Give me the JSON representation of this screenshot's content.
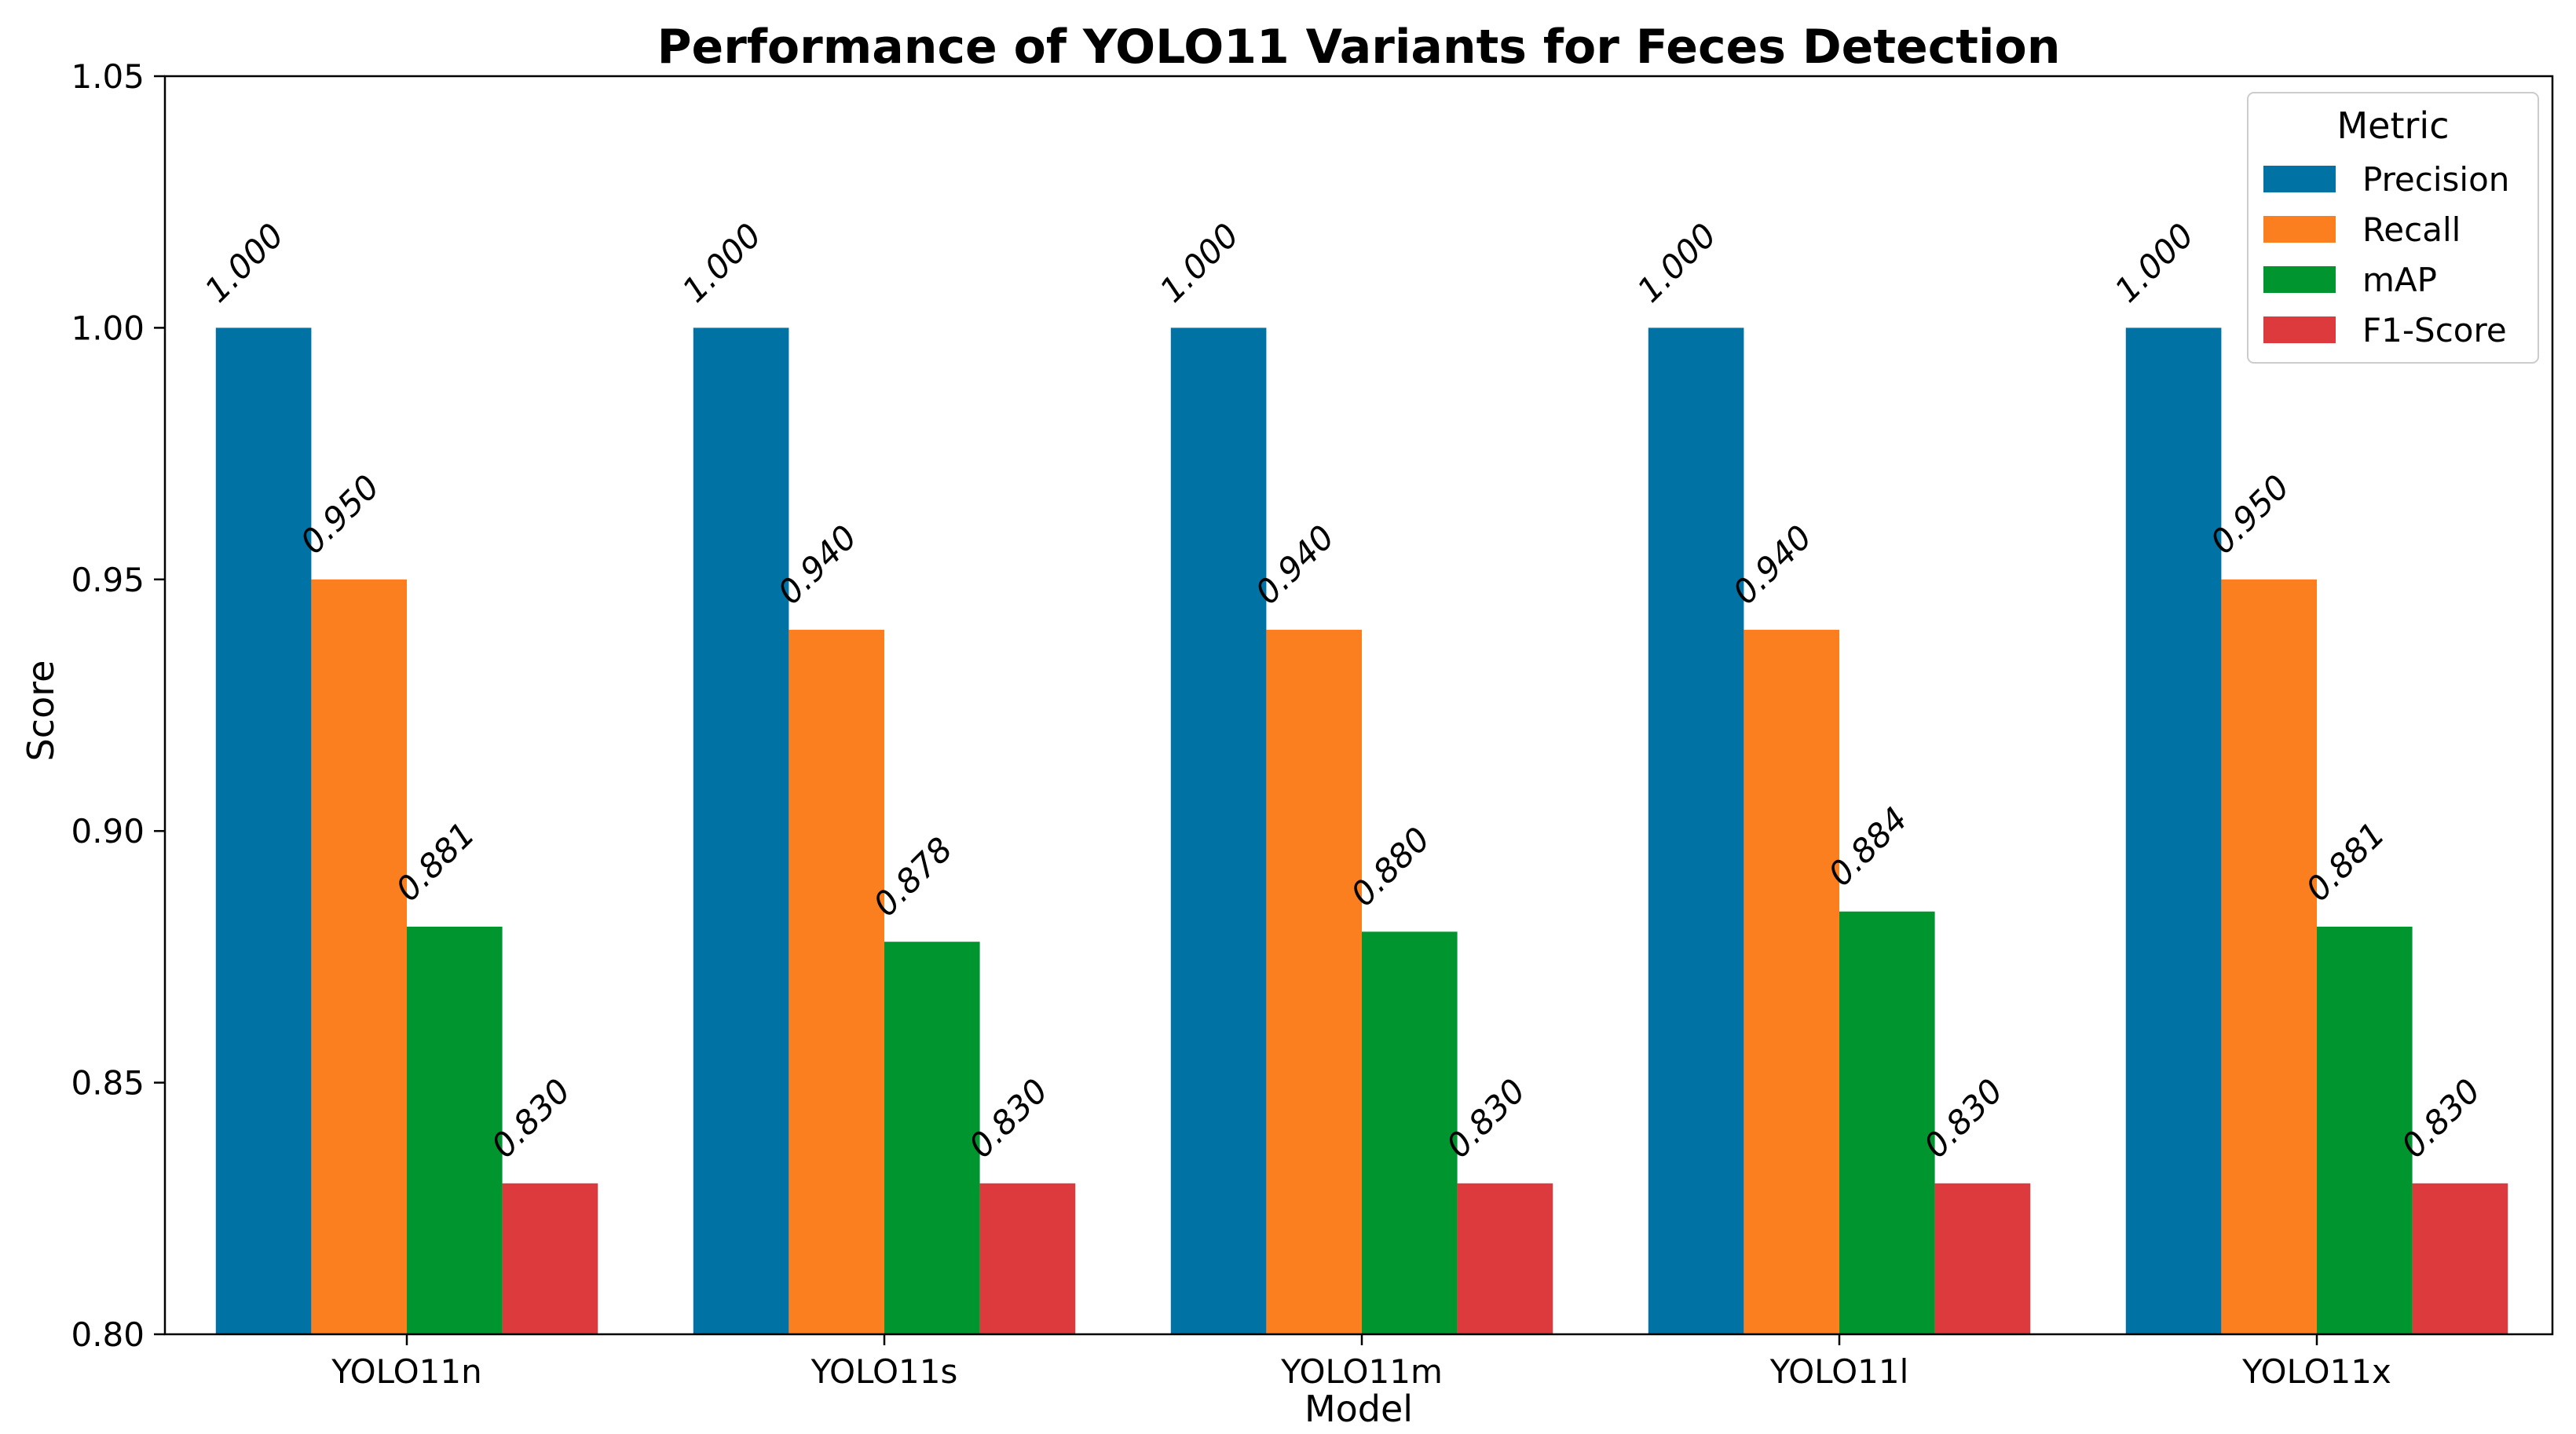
{
  "chart_data": {
    "type": "bar",
    "title": "Performance of YOLO11 Variants for Feces Detection",
    "xlabel": "Model",
    "ylabel": "Score",
    "ylim": [
      0.8,
      1.05
    ],
    "yticks": [
      "0.80",
      "0.85",
      "0.90",
      "0.95",
      "1.00",
      "1.05"
    ],
    "categories": [
      "YOLO11n",
      "YOLO11s",
      "YOLO11m",
      "YOLO11l",
      "YOLO11x"
    ],
    "series": [
      {
        "name": "Precision",
        "color": "#0072a3",
        "values": [
          1.0,
          1.0,
          1.0,
          1.0,
          1.0
        ],
        "labels": [
          "1.000",
          "1.000",
          "1.000",
          "1.000",
          "1.000"
        ]
      },
      {
        "name": "Recall",
        "color": "#fb7f1f",
        "values": [
          0.95,
          0.94,
          0.94,
          0.94,
          0.95
        ],
        "labels": [
          "0.950",
          "0.940",
          "0.940",
          "0.940",
          "0.950"
        ]
      },
      {
        "name": "mAP",
        "color": "#00952f",
        "values": [
          0.881,
          0.878,
          0.88,
          0.884,
          0.881
        ],
        "labels": [
          "0.881",
          "0.878",
          "0.880",
          "0.884",
          "0.881"
        ]
      },
      {
        "name": "F1-Score",
        "color": "#dc3a3c",
        "values": [
          0.83,
          0.83,
          0.83,
          0.83,
          0.83
        ],
        "labels": [
          "0.830",
          "0.830",
          "0.830",
          "0.830",
          "0.830"
        ]
      }
    ],
    "legend": {
      "title": "Metric",
      "position": "top-right"
    },
    "grid": false
  }
}
